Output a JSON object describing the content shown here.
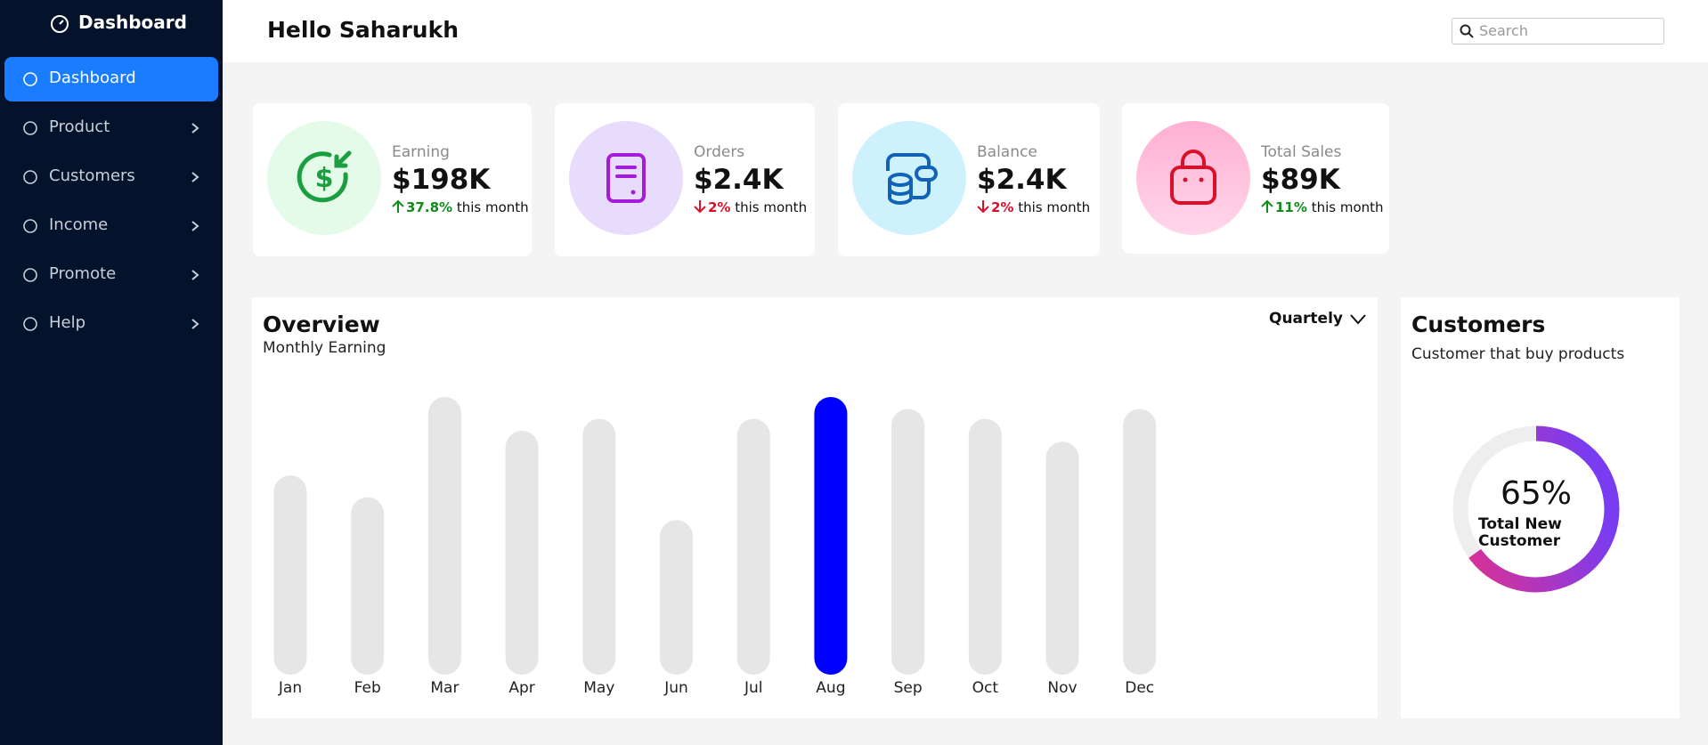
{
  "sidebar": {
    "brand": "Dashboard",
    "menu": [
      {
        "label": "Dashboard",
        "active": true,
        "expandable": false
      },
      {
        "label": "Product",
        "active": false,
        "expandable": true
      },
      {
        "label": "Customers",
        "active": false,
        "expandable": true
      },
      {
        "label": "Income",
        "active": false,
        "expandable": true
      },
      {
        "label": "Promote",
        "active": false,
        "expandable": true
      },
      {
        "label": "Help",
        "active": false,
        "expandable": true
      }
    ]
  },
  "header": {
    "greeting": "Hello Saharukh",
    "search_placeholder": "Search"
  },
  "cards": [
    {
      "label": "Earning",
      "value": "$198K",
      "change": "37.8%",
      "direction": "up",
      "period": "this month"
    },
    {
      "label": "Orders",
      "value": "$2.4K",
      "change": "2%",
      "direction": "down",
      "period": "this month"
    },
    {
      "label": "Balance",
      "value": "$2.4K",
      "change": "2%",
      "direction": "down",
      "period": "this month"
    },
    {
      "label": "Total Sales",
      "value": "$89K",
      "change": "11%",
      "direction": "up",
      "period": "this month"
    }
  ],
  "overview": {
    "title": "Overview",
    "subtitle": "Monthly Earning",
    "period": "Quartely",
    "chart": {
      "type": "bar",
      "categories": [
        "Jan",
        "Feb",
        "Mar",
        "Apr",
        "May",
        "Jun",
        "Jul",
        "Aug",
        "Sep",
        "Oct",
        "Nov",
        "Dec"
      ],
      "values": [
        183,
        163,
        255,
        224,
        235,
        142,
        235,
        255,
        244,
        235,
        214,
        244
      ],
      "color": "#e6e6e6",
      "highlight": 7,
      "highlight_color": "#0000ff"
    }
  },
  "customers": {
    "title": "Customers",
    "subtitle": "Customer that buy products",
    "chart": {
      "type": "donut",
      "value": 65,
      "value_label": "65%",
      "label": "Total New Customer",
      "color": "#eeeeee"
    }
  }
}
